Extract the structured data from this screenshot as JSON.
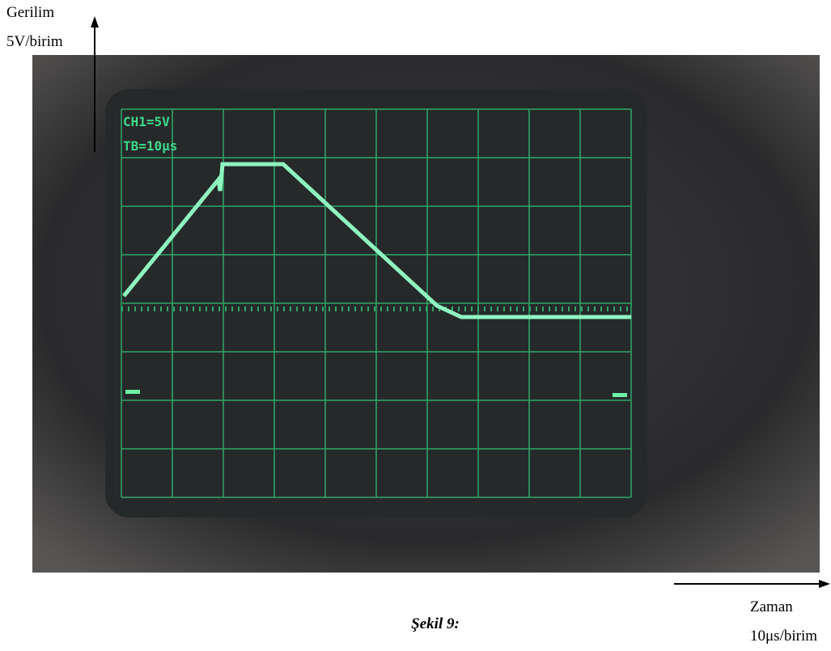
{
  "figure": {
    "y_axis_label": "Gerilim",
    "y_axis_unit": "5V/birim",
    "x_axis_label": "Zaman",
    "x_axis_unit": "10μs/birim",
    "screen_channel": "CH1=5V",
    "screen_timebase": "TB=10μs",
    "caption": "Şekil 9:"
  }
}
